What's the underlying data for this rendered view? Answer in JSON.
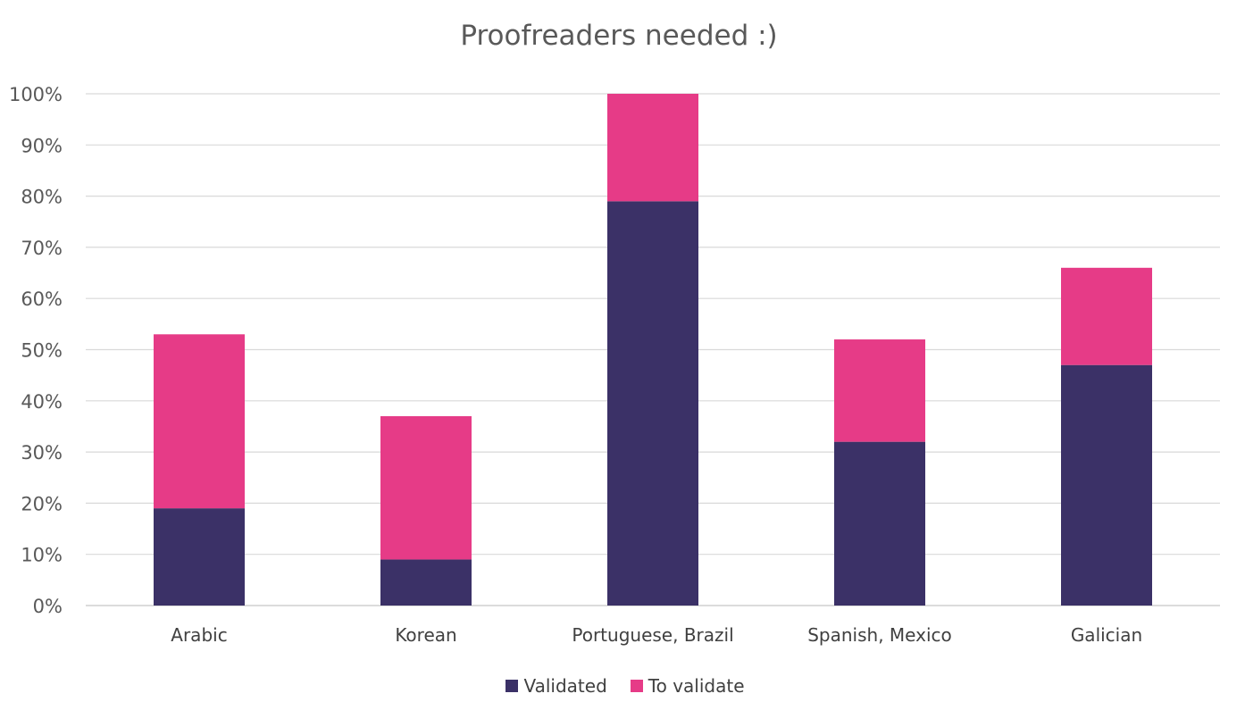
{
  "chart_data": {
    "type": "bar",
    "stacked": true,
    "title": "Proofreaders needed :)",
    "xlabel": "",
    "ylabel": "",
    "categories": [
      "Arabic",
      "Korean",
      "Portuguese, Brazil",
      "Spanish, Mexico",
      "Galician"
    ],
    "series": [
      {
        "name": "Validated",
        "color": "#3b3167",
        "values": [
          19,
          9,
          79,
          32,
          47
        ]
      },
      {
        "name": "To validate",
        "color": "#e63b87",
        "values": [
          34,
          28,
          21,
          20,
          19
        ]
      }
    ],
    "ylim": [
      0,
      100
    ],
    "yticks": [
      0,
      10,
      20,
      30,
      40,
      50,
      60,
      70,
      80,
      90,
      100
    ],
    "ytick_format": "{v}%",
    "grid": true,
    "legend_position": "bottom"
  }
}
